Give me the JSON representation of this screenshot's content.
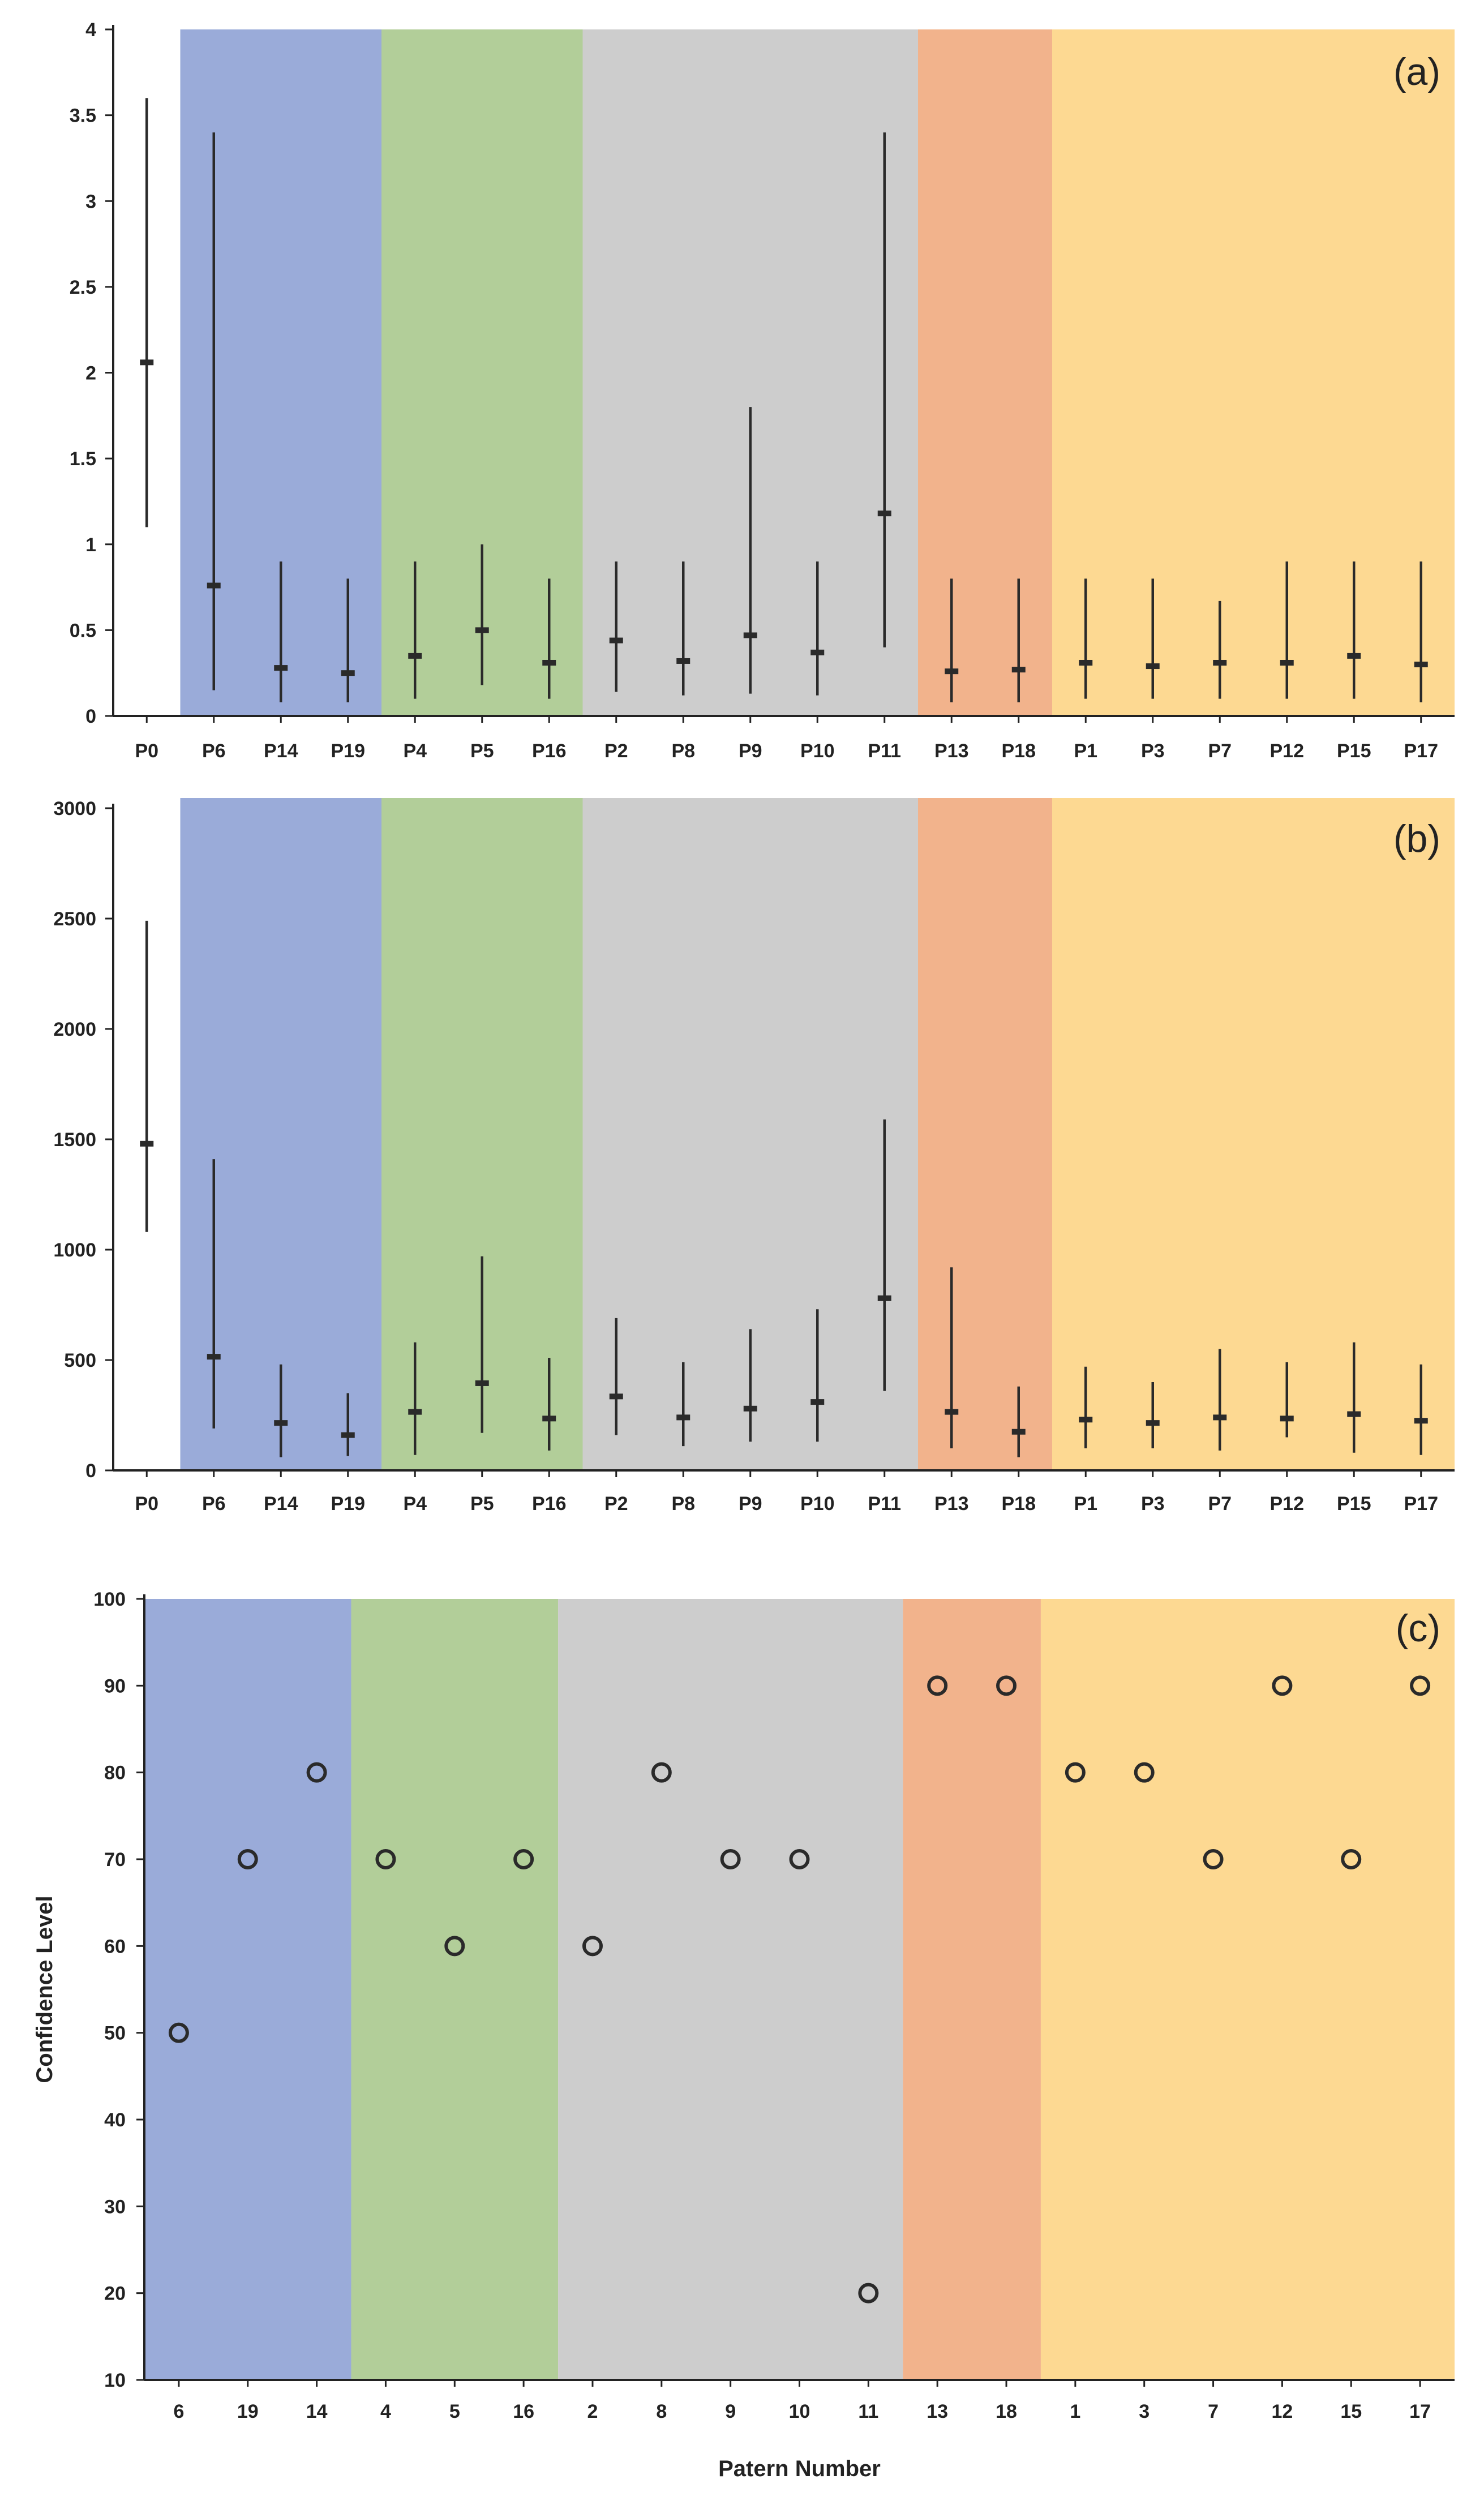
{
  "colors": {
    "group1": "#9aabd9",
    "group2": "#b2ce99",
    "group3": "#cdcdcd",
    "group4": "#f2b38c",
    "group5": "#fdd992",
    "axis": "#222222",
    "marker": "#2a2a2a"
  },
  "chart_data": [
    {
      "type": "errorbar",
      "panel_label": "(a)",
      "categories": [
        "P0",
        "P6",
        "P14",
        "P19",
        "P4",
        "P5",
        "P16",
        "P2",
        "P8",
        "P9",
        "P10",
        "P11",
        "P13",
        "P18",
        "P1",
        "P3",
        "P7",
        "P12",
        "P15",
        "P17"
      ],
      "center": [
        2.06,
        0.76,
        0.28,
        0.25,
        0.35,
        0.5,
        0.31,
        0.44,
        0.32,
        0.47,
        0.37,
        1.18,
        0.26,
        0.27,
        0.31,
        0.29,
        0.31,
        0.31,
        0.35,
        0.3
      ],
      "lower": [
        1.1,
        0.15,
        0.08,
        0.08,
        0.1,
        0.18,
        0.1,
        0.14,
        0.12,
        0.13,
        0.12,
        0.4,
        0.08,
        0.08,
        0.1,
        0.1,
        0.1,
        0.1,
        0.1,
        0.08
      ],
      "upper": [
        3.6,
        3.4,
        0.9,
        0.8,
        0.9,
        1.0,
        0.8,
        0.9,
        0.9,
        1.8,
        0.9,
        3.4,
        0.8,
        0.8,
        0.8,
        0.8,
        0.67,
        0.9,
        0.9,
        0.9
      ],
      "ylim": [
        0,
        4
      ],
      "yticks": [
        "0",
        "0.5",
        "1",
        "1.5",
        "2",
        "2.5",
        "3",
        "3.5",
        "4"
      ],
      "groups": [
        {
          "from": "P6",
          "to": "P19",
          "color": "group1"
        },
        {
          "from": "P4",
          "to": "P16",
          "color": "group2"
        },
        {
          "from": "P2",
          "to": "P11",
          "color": "group3"
        },
        {
          "from": "P13",
          "to": "P18",
          "color": "group4"
        },
        {
          "from": "P1",
          "to": "P17",
          "color": "group5"
        }
      ]
    },
    {
      "type": "errorbar",
      "panel_label": "(b)",
      "categories": [
        "P0",
        "P6",
        "P14",
        "P19",
        "P4",
        "P5",
        "P16",
        "P2",
        "P8",
        "P9",
        "P10",
        "P11",
        "P13",
        "P18",
        "P1",
        "P3",
        "P7",
        "P12",
        "P15",
        "P17"
      ],
      "center": [
        1480,
        515,
        215,
        160,
        265,
        395,
        235,
        335,
        240,
        280,
        310,
        780,
        265,
        175,
        230,
        215,
        240,
        235,
        255,
        225
      ],
      "lower": [
        1080,
        190,
        60,
        65,
        70,
        170,
        90,
        160,
        110,
        130,
        130,
        360,
        100,
        60,
        100,
        100,
        90,
        150,
        80,
        70
      ],
      "upper": [
        2490,
        1410,
        480,
        350,
        580,
        970,
        510,
        690,
        490,
        640,
        730,
        1590,
        920,
        380,
        470,
        400,
        550,
        490,
        580,
        480
      ],
      "ylim": [
        0,
        3000
      ],
      "yticks": [
        "0",
        "500",
        "1000",
        "1500",
        "2000",
        "2500",
        "3000"
      ],
      "groups": [
        {
          "from": "P6",
          "to": "P19",
          "color": "group1"
        },
        {
          "from": "P4",
          "to": "P16",
          "color": "group2"
        },
        {
          "from": "P2",
          "to": "P11",
          "color": "group3"
        },
        {
          "from": "P13",
          "to": "P18",
          "color": "group4"
        },
        {
          "from": "P1",
          "to": "P17",
          "color": "group5"
        }
      ]
    },
    {
      "type": "scatter",
      "panel_label": "(c)",
      "categories": [
        "6",
        "19",
        "14",
        "4",
        "5",
        "16",
        "2",
        "8",
        "9",
        "10",
        "11",
        "13",
        "18",
        "1",
        "3",
        "7",
        "12",
        "15",
        "17"
      ],
      "values": [
        50,
        70,
        80,
        70,
        60,
        70,
        60,
        80,
        70,
        70,
        20,
        90,
        90,
        80,
        80,
        70,
        90,
        70,
        90
      ],
      "ylim": [
        10,
        100
      ],
      "yticks": [
        "10",
        "20",
        "30",
        "40",
        "50",
        "60",
        "70",
        "80",
        "90",
        "100"
      ],
      "xlabel": "Patern Number",
      "ylabel": "Confidence Level",
      "groups": [
        {
          "from": "6",
          "to": "14",
          "color": "group1"
        },
        {
          "from": "4",
          "to": "16",
          "color": "group2"
        },
        {
          "from": "2",
          "to": "11",
          "color": "group3"
        },
        {
          "from": "13",
          "to": "18",
          "color": "group4"
        },
        {
          "from": "1",
          "to": "17",
          "color": "group5"
        }
      ]
    }
  ]
}
